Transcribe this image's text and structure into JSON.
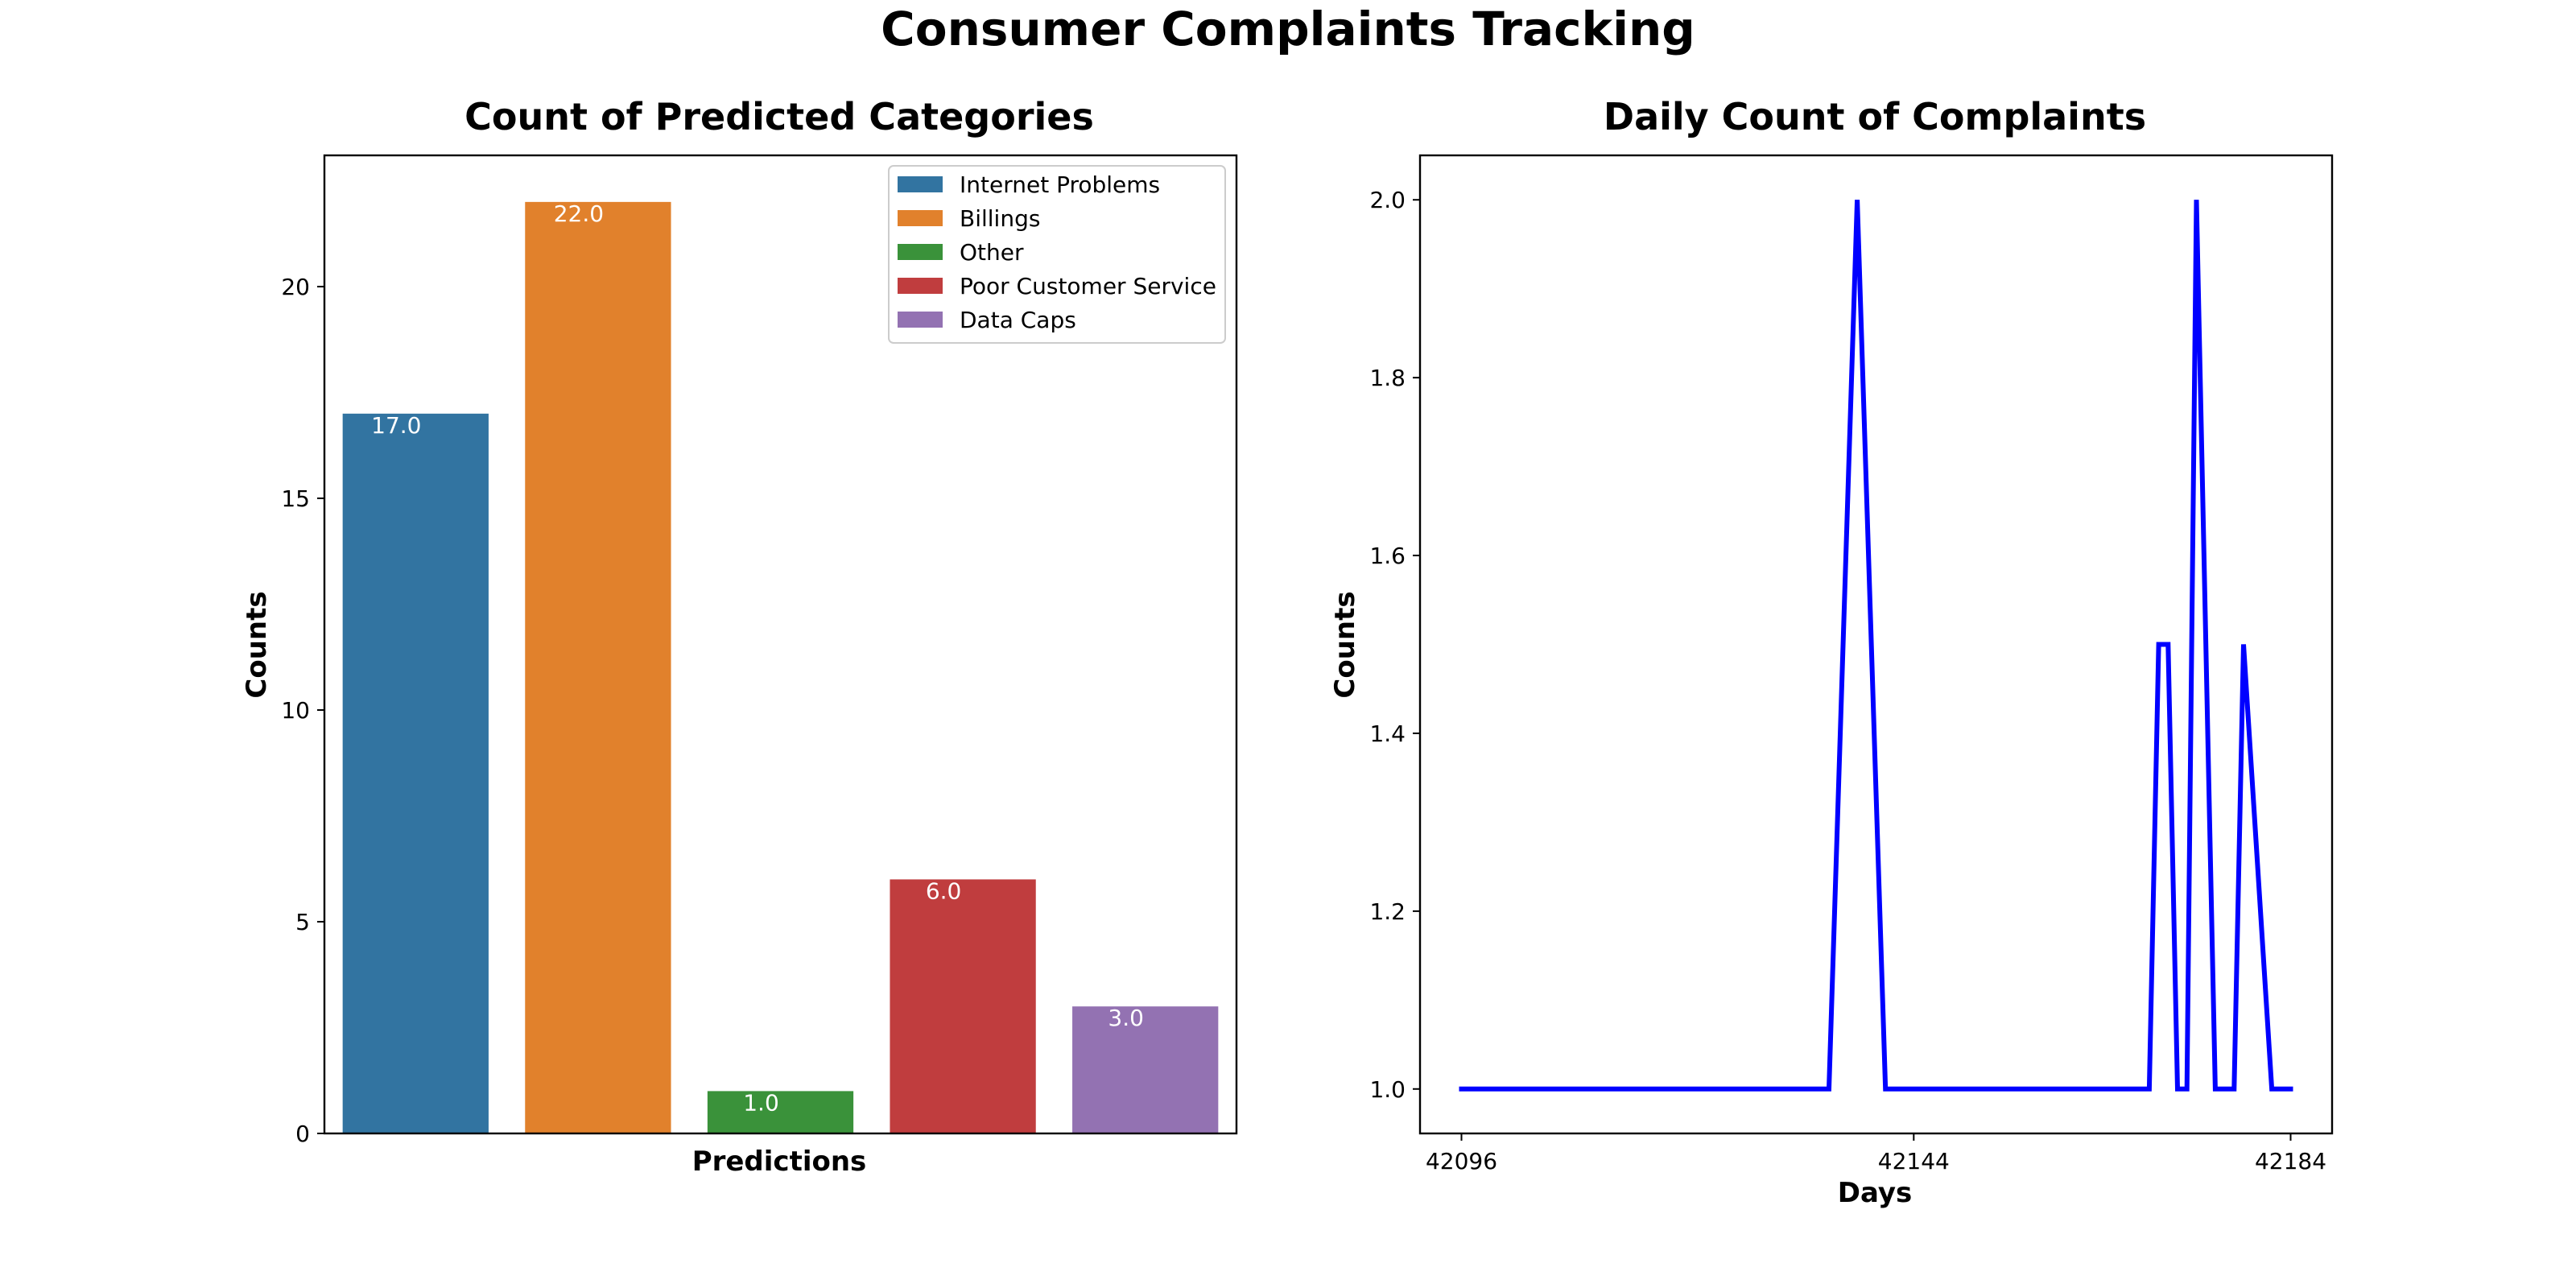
{
  "figure": {
    "title": "Consumer Complaints Tracking"
  },
  "chart_data": [
    {
      "type": "bar",
      "title": "Count of Predicted Categories",
      "xlabel": "Predictions",
      "ylabel": "Counts",
      "categories": [
        "Internet Problems",
        "Billings",
        "Other",
        "Poor Customer Service",
        "Data Caps"
      ],
      "values": [
        17.0,
        22.0,
        1.0,
        6.0,
        3.0
      ],
      "data_labels": [
        "17.0",
        "22.0",
        "1.0",
        "6.0",
        "3.0"
      ],
      "colors": [
        "#3274a1",
        "#e1812c",
        "#3a923a",
        "#c03d3e",
        "#9372b2"
      ],
      "ylim": [
        0,
        23.1
      ],
      "yticks": [
        0,
        5,
        10,
        15,
        20
      ],
      "yticklabels": [
        "0",
        "5",
        "10",
        "15",
        "20"
      ],
      "legend": {
        "placement": "top-right",
        "entries": [
          "Internet Problems",
          "Billings",
          "Other",
          "Poor Customer Service",
          "Data Caps"
        ]
      },
      "grid": false
    },
    {
      "type": "line",
      "title": "Daily Count of Complaints",
      "xlabel": "Days",
      "ylabel": "Counts",
      "series": [
        {
          "color": "#0000ff",
          "x": [
            42096,
            42099,
            42102,
            42105,
            42108,
            42111,
            42114,
            42117,
            42120,
            42123,
            42126,
            42129,
            42132,
            42135,
            42138,
            42141,
            42144,
            42147,
            42150,
            42153,
            42156,
            42159,
            42162,
            42165,
            42166,
            42169,
            42170,
            42171,
            42172,
            42173,
            42174,
            42176,
            42177,
            42178,
            42179,
            42182,
            42184
          ],
          "y": [
            1,
            1,
            1,
            1,
            1,
            1,
            1,
            1,
            1,
            1,
            1,
            1,
            1,
            1,
            2,
            1,
            1,
            1,
            1,
            1,
            1,
            1,
            1,
            1,
            1,
            1,
            1.5,
            1.5,
            1,
            1,
            2,
            1,
            1,
            1,
            1.5,
            1,
            1
          ]
        }
      ],
      "xlim": [
        42091.6,
        42188.4
      ],
      "ylim": [
        0.95,
        2.05
      ],
      "xticks": [
        42096,
        42144,
        42184
      ],
      "xticklabels": [
        "42096",
        "42144",
        "42184"
      ],
      "yticks": [
        1.0,
        1.2,
        1.4,
        1.6,
        1.8,
        2.0
      ],
      "yticklabels": [
        "1.0",
        "1.2",
        "1.4",
        "1.6",
        "1.8",
        "2.0"
      ],
      "grid": false
    }
  ]
}
